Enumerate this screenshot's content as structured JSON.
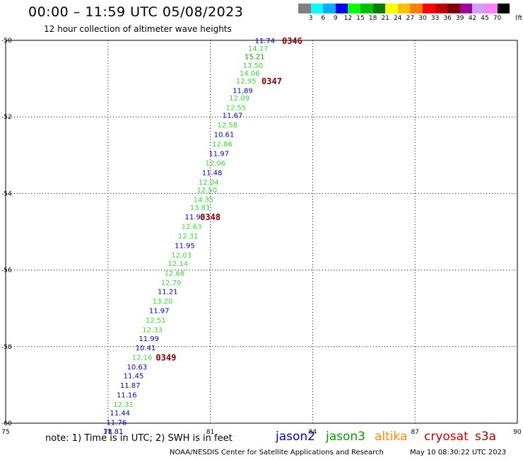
{
  "header": {
    "title": "00:00 – 11:59 UTC 05/08/2023",
    "subtitle": "12 hour collection of altimeter wave heights"
  },
  "color_scale": {
    "labels": [
      "3",
      "6",
      "9",
      "12",
      "15",
      "18",
      "21",
      "24",
      "27",
      "30",
      "33",
      "36",
      "39",
      "42",
      "45",
      "70"
    ],
    "unit": "(ft)",
    "colors": [
      "#808080",
      "#00ffff",
      "#00b0ff",
      "#0000ff",
      "#00ff00",
      "#00c000",
      "#008000",
      "#ffff00",
      "#ffc000",
      "#ff8000",
      "#ff0000",
      "#c00000",
      "#800000",
      "#a000a0",
      "#d0a0ff",
      "#ff80ff",
      "#000000"
    ]
  },
  "footer": {
    "note": "note:  1) Time is in UTC; 2) SWH is in feet",
    "credit": "NOAA/NESDIS Center for Satellite Applications and Research",
    "timestamp": "May 10 08:30:22 UTC 2023"
  },
  "satellites": [
    {
      "name": "jason2",
      "color": "#0000cc"
    },
    {
      "name": "jason3",
      "color": "#009900"
    },
    {
      "name": "altika",
      "color": "#ff8800"
    },
    {
      "name": "cryosat",
      "color": "#cc0000"
    },
    {
      "name": "s3a",
      "color": "#990000"
    }
  ],
  "chart_data": {
    "type": "scatter",
    "title": "12 hour collection of altimeter wave heights",
    "xlim": [
      75,
      90
    ],
    "ylim": [
      -60,
      -50
    ],
    "x_ticks": [
      "75",
      "78",
      "81",
      "84",
      "87",
      "90"
    ],
    "y_ticks": [
      "-50",
      "-52",
      "-54",
      "-56",
      "-58",
      "-60"
    ],
    "grid": true,
    "points": [
      {
        "lon": 82.6,
        "lat": -50.0,
        "label": "11.74",
        "color": "#0000cc"
      },
      {
        "lon": 82.4,
        "lat": -50.2,
        "label": "14.17",
        "color": "#33dd33"
      },
      {
        "lon": 82.3,
        "lat": -50.42,
        "label": "15.21",
        "color": "#009900"
      },
      {
        "lon": 82.25,
        "lat": -50.65,
        "label": "13.50",
        "color": "#33dd33"
      },
      {
        "lon": 82.15,
        "lat": -50.85,
        "label": "14.06",
        "color": "#33dd33"
      },
      {
        "lon": 82.05,
        "lat": -51.05,
        "label": "12.95",
        "color": "#33dd33"
      },
      {
        "lon": 81.95,
        "lat": -51.3,
        "label": "11.89",
        "color": "#0000cc"
      },
      {
        "lon": 81.85,
        "lat": -51.5,
        "label": "12.09",
        "color": "#33dd33"
      },
      {
        "lon": 81.75,
        "lat": -51.75,
        "label": "12.55",
        "color": "#33dd33"
      },
      {
        "lon": 81.65,
        "lat": -51.95,
        "label": "11.67",
        "color": "#0000cc"
      },
      {
        "lon": 81.5,
        "lat": -52.2,
        "label": "12.58",
        "color": "#33dd33"
      },
      {
        "lon": 81.4,
        "lat": -52.45,
        "label": "10.61",
        "color": "#0000cc"
      },
      {
        "lon": 81.35,
        "lat": -52.7,
        "label": "12.86",
        "color": "#33dd33"
      },
      {
        "lon": 81.25,
        "lat": -52.95,
        "label": "11.97",
        "color": "#0000cc"
      },
      {
        "lon": 81.15,
        "lat": -53.2,
        "label": "12.06",
        "color": "#33dd33"
      },
      {
        "lon": 81.05,
        "lat": -53.45,
        "label": "11.48",
        "color": "#0000cc"
      },
      {
        "lon": 80.95,
        "lat": -53.7,
        "label": "12.04",
        "color": "#33dd33"
      },
      {
        "lon": 80.9,
        "lat": -53.9,
        "label": "12.50",
        "color": "#33dd33"
      },
      {
        "lon": 80.8,
        "lat": -54.15,
        "label": "14.35",
        "color": "#33dd33"
      },
      {
        "lon": 80.7,
        "lat": -54.35,
        "label": "13.81",
        "color": "#33dd33"
      },
      {
        "lon": 80.55,
        "lat": -54.6,
        "label": "11.93",
        "color": "#0000cc"
      },
      {
        "lon": 80.45,
        "lat": -54.85,
        "label": "12.63",
        "color": "#33dd33"
      },
      {
        "lon": 80.35,
        "lat": -55.1,
        "label": "12.31",
        "color": "#33dd33"
      },
      {
        "lon": 80.25,
        "lat": -55.35,
        "label": "11.95",
        "color": "#0000cc"
      },
      {
        "lon": 80.15,
        "lat": -55.6,
        "label": "12.03",
        "color": "#33dd33"
      },
      {
        "lon": 80.05,
        "lat": -55.82,
        "label": "12.14",
        "color": "#33dd33"
      },
      {
        "lon": 79.95,
        "lat": -56.07,
        "label": "12.68",
        "color": "#33dd33"
      },
      {
        "lon": 79.85,
        "lat": -56.32,
        "label": "12.79",
        "color": "#33dd33"
      },
      {
        "lon": 79.75,
        "lat": -56.55,
        "label": "11.21",
        "color": "#0000cc"
      },
      {
        "lon": 79.6,
        "lat": -56.8,
        "label": "13.20",
        "color": "#33dd33"
      },
      {
        "lon": 79.5,
        "lat": -57.05,
        "label": "11.97",
        "color": "#0000cc"
      },
      {
        "lon": 79.4,
        "lat": -57.3,
        "label": "12.51",
        "color": "#33dd33"
      },
      {
        "lon": 79.3,
        "lat": -57.55,
        "label": "12.33",
        "color": "#33dd33"
      },
      {
        "lon": 79.2,
        "lat": -57.78,
        "label": "11.99",
        "color": "#0000cc"
      },
      {
        "lon": 79.1,
        "lat": -58.02,
        "label": "10.41",
        "color": "#0000cc"
      },
      {
        "lon": 79.0,
        "lat": -58.27,
        "label": "12.16",
        "color": "#33dd33"
      },
      {
        "lon": 78.85,
        "lat": -58.52,
        "label": "10.63",
        "color": "#0000cc"
      },
      {
        "lon": 78.75,
        "lat": -58.75,
        "label": "11.45",
        "color": "#0000cc"
      },
      {
        "lon": 78.65,
        "lat": -59.0,
        "label": "11.87",
        "color": "#0000cc"
      },
      {
        "lon": 78.55,
        "lat": -59.25,
        "label": "11.16",
        "color": "#0000cc"
      },
      {
        "lon": 78.45,
        "lat": -59.5,
        "label": "12.31",
        "color": "#33dd33"
      },
      {
        "lon": 78.35,
        "lat": -59.72,
        "label": "11.44",
        "color": "#0000cc"
      },
      {
        "lon": 78.25,
        "lat": -59.97,
        "label": "11.76",
        "color": "#0000cc"
      },
      {
        "lon": 78.15,
        "lat": -60.2,
        "label": "11.81",
        "color": "#0000cc"
      }
    ],
    "time_markers": [
      {
        "lon": 83.4,
        "lat": -50.0,
        "label": "0346"
      },
      {
        "lon": 82.8,
        "lat": -51.05,
        "label": "0347"
      },
      {
        "lon": 81.0,
        "lat": -54.6,
        "label": "0348"
      },
      {
        "lon": 79.7,
        "lat": -58.27,
        "label": "0349"
      }
    ]
  }
}
